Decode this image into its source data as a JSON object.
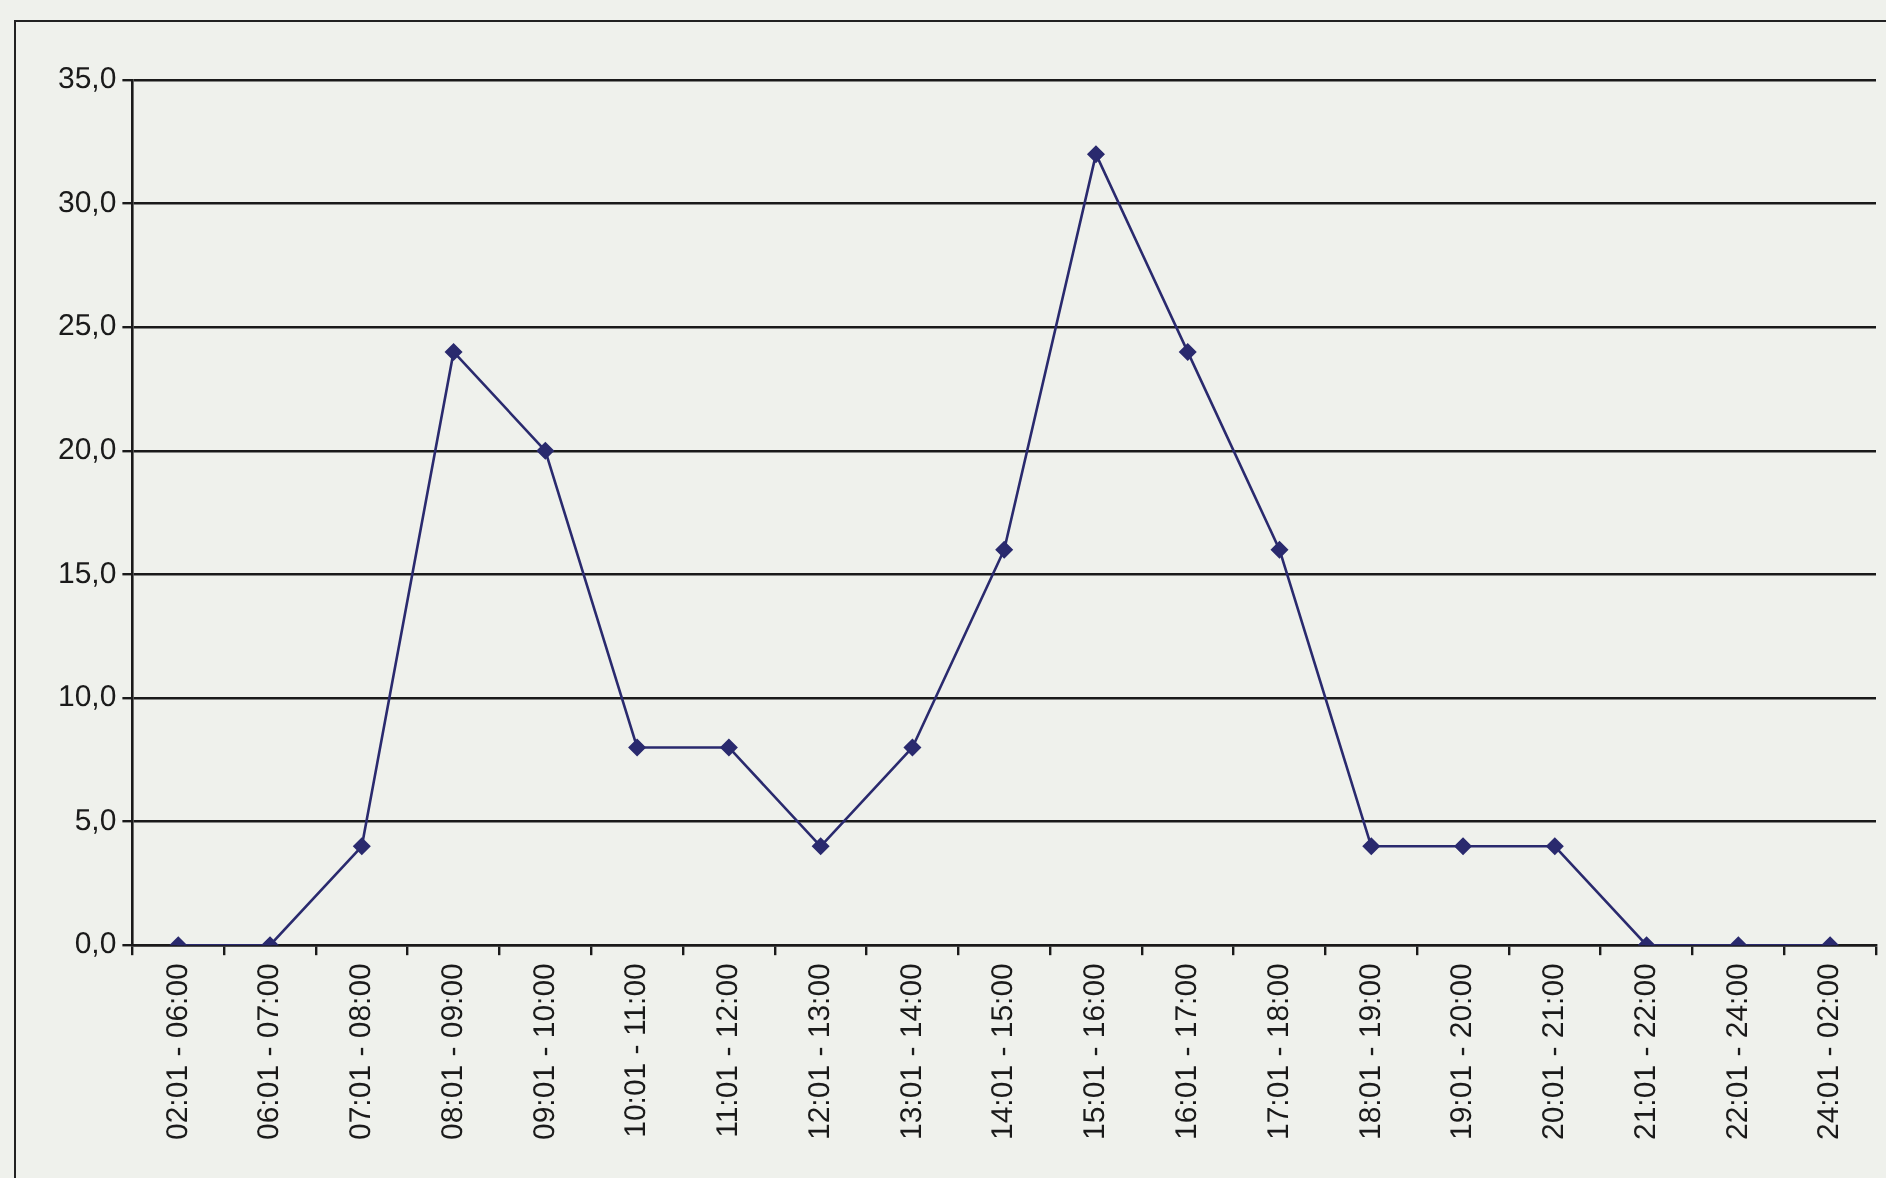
{
  "chart_data": {
    "type": "line",
    "categories": [
      "02:01 - 06:00",
      "06:01 - 07:00",
      "07:01 - 08:00",
      "08:01 - 09:00",
      "09:01 - 10:00",
      "10:01 - 11:00",
      "11:01 - 12:00",
      "12:01 - 13:00",
      "13:01 - 14:00",
      "14:01 - 15:00",
      "15:01 - 16:00",
      "16:01 - 17:00",
      "17:01 - 18:00",
      "18:01 - 19:00",
      "19:01 - 20:00",
      "20:01 - 21:00",
      "21:01 - 22:00",
      "22:01 - 24:00",
      "24:01 - 02:00"
    ],
    "series": [
      {
        "color": "#2a2a6e",
        "values": [
          0,
          0,
          4,
          24,
          20,
          8,
          8,
          4,
          8,
          16,
          32,
          24,
          16,
          4,
          4,
          4,
          0,
          0,
          0
        ]
      }
    ],
    "ylim": [
      0,
      35
    ],
    "yticks": [
      {
        "value": 0,
        "label": "0,0"
      },
      {
        "value": 5,
        "label": "5,0"
      },
      {
        "value": 10,
        "label": "10,0"
      },
      {
        "value": 15,
        "label": "15,0"
      },
      {
        "value": 20,
        "label": "20,0"
      },
      {
        "value": 25,
        "label": "25,0"
      },
      {
        "value": 30,
        "label": "30,0"
      },
      {
        "value": 35,
        "label": "35,0"
      }
    ],
    "grid": "y",
    "marker": "diamond",
    "line_style": "solid"
  }
}
